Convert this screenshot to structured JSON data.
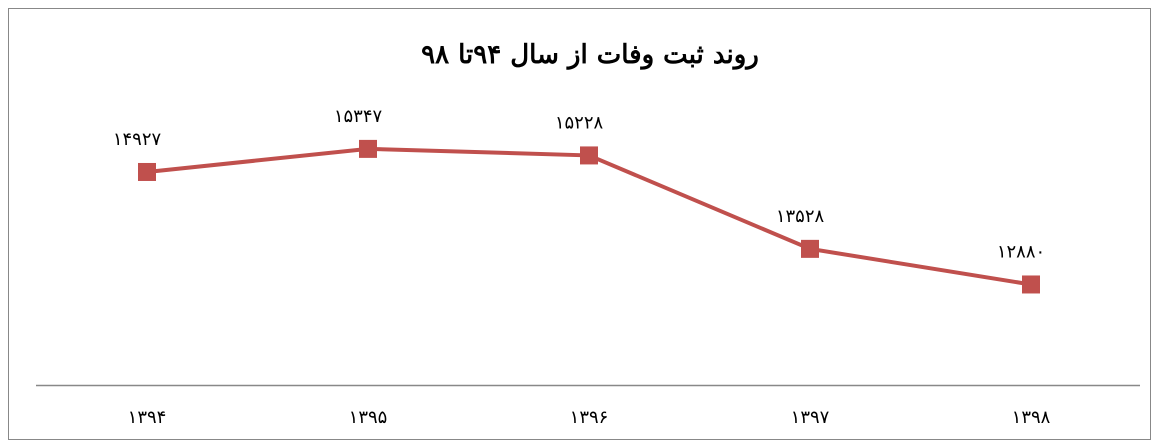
{
  "chart_data": {
    "type": "line",
    "title": "روند ثبت  وفات از سال ۹۴تا ۹۸",
    "categories": [
      "۱۳۹۴",
      "۱۳۹۵",
      "۱۳۹۶",
      "۱۳۹۷",
      "۱۳۹۸"
    ],
    "series": [
      {
        "name": null,
        "color": "#c0504d",
        "values": [
          14927,
          15347,
          15228,
          13528,
          12880
        ],
        "value_labels": [
          "۱۴۹۲۷",
          "۱۵۳۴۷",
          "۱۵۲۲۸",
          "۱۳۵۲۸",
          "۱۲۸۸۰"
        ]
      }
    ],
    "ylim": [
      11000,
      16000
    ]
  }
}
